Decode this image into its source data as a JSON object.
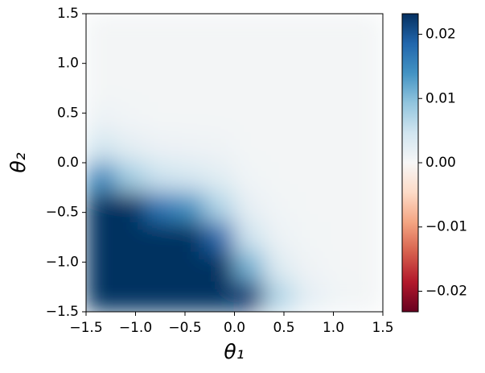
{
  "chart_data": {
    "type": "heatmap",
    "xlabel": "θ₁",
    "ylabel": "θ₂",
    "x": [
      -1.35,
      -1.05,
      -0.75,
      -0.45,
      -0.15,
      0.15,
      0.45,
      0.75,
      1.05,
      1.35
    ],
    "y": [
      1.35,
      1.05,
      0.75,
      0.45,
      0.15,
      -0.15,
      -0.45,
      -0.75,
      -1.05,
      -1.35
    ],
    "z": [
      [
        0.0005,
        0.0005,
        0.0005,
        0.0005,
        0.0005,
        0.0005,
        0.0005,
        0.0005,
        0.0005,
        0.0005
      ],
      [
        0.0005,
        0.0005,
        0.0005,
        0.0005,
        0.0005,
        0.0005,
        0.0005,
        0.0005,
        0.0005,
        0.0005
      ],
      [
        0.0005,
        0.0005,
        0.0005,
        0.0005,
        0.0005,
        0.0005,
        0.0005,
        0.0005,
        0.0005,
        0.0005
      ],
      [
        0.0014,
        0.0007,
        0.0005,
        0.0005,
        0.0005,
        0.0005,
        0.0005,
        0.0005,
        0.0005,
        0.0005
      ],
      [
        0.0045,
        0.0025,
        0.0015,
        0.0012,
        0.001,
        0.0005,
        0.0005,
        0.0005,
        0.0005,
        0.0005
      ],
      [
        0.015,
        0.008,
        0.005,
        0.004,
        0.0027,
        0.0009,
        0.0005,
        0.0005,
        0.0005,
        0.0005
      ],
      [
        0.025,
        0.025,
        0.017,
        0.014,
        0.007,
        0.002,
        0.0007,
        0.0005,
        0.0005,
        0.0005
      ],
      [
        0.025,
        0.025,
        0.025,
        0.025,
        0.018,
        0.0048,
        0.0013,
        0.0006,
        0.0005,
        0.0005
      ],
      [
        0.025,
        0.025,
        0.025,
        0.025,
        0.025,
        0.011,
        0.0031,
        0.001,
        0.0005,
        0.0005
      ],
      [
        0.025,
        0.025,
        0.025,
        0.025,
        0.025,
        0.022,
        0.007,
        0.0023,
        0.0008,
        0.0005
      ]
    ],
    "xlim": [
      -1.5,
      1.5
    ],
    "ylim": [
      -1.5,
      1.5
    ],
    "xticks": [
      {
        "value": -1.5,
        "label": "−1.5"
      },
      {
        "value": -1.0,
        "label": "−1.0"
      },
      {
        "value": -0.5,
        "label": "−0.5"
      },
      {
        "value": 0,
        "label": "0.0"
      },
      0.5,
      {
        "value": 1,
        "label": "1.0"
      },
      1.5
    ],
    "yticks": [
      {
        "value": -1.5,
        "label": "−1.5"
      },
      {
        "value": -1.0,
        "label": "−1.0"
      },
      {
        "value": -0.5,
        "label": "−0.5"
      },
      {
        "value": 0,
        "label": "0.0"
      },
      0.5,
      {
        "value": 1,
        "label": "1.0"
      },
      1.5
    ],
    "clim": [
      -0.0232,
      0.0232
    ],
    "cticks": [
      {
        "value": -0.02,
        "label": "−0.02"
      },
      {
        "value": -0.01,
        "label": "−0.01"
      },
      {
        "value": 0,
        "label": "0.00"
      },
      0.01,
      0.02
    ],
    "colorscale": [
      "#67001f",
      "#b2182b",
      "#d6604d",
      "#f4a582",
      "#fddbc7",
      "#f7f7f7",
      "#d1e5f0",
      "#92c5de",
      "#4393c3",
      "#2166ac",
      "#053061"
    ]
  }
}
